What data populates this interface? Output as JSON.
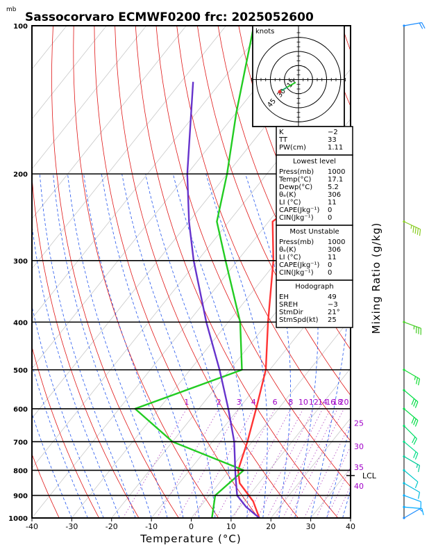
{
  "chart_data": {
    "type": "skew-t log-p sounding",
    "title": "Sassocorvaro ECMWF0200  frc: 2025052600",
    "yunit": "mb",
    "xlabel": "Temperature (°C)",
    "right_label": "Mixing Ratio (g/kg)",
    "xlim": [
      -40,
      40
    ],
    "ylim": [
      1000,
      100
    ],
    "x_ticks": [
      -40,
      -30,
      -20,
      -10,
      0,
      10,
      20,
      30,
      40
    ],
    "pressure_levels": [
      100,
      200,
      300,
      400,
      500,
      600,
      700,
      800,
      900,
      1000
    ],
    "pressure_ticks": [
      100,
      200,
      300,
      400,
      500,
      600,
      700,
      800,
      900,
      1000
    ],
    "mixing_ratio_labels": [
      "1",
      "2",
      "3",
      "4",
      "6",
      "8",
      "10",
      "12",
      "14",
      "16",
      "18",
      "20",
      "25",
      "30",
      "35",
      "40"
    ],
    "mixing_ratio_values": [
      1,
      2,
      3,
      4,
      6,
      8,
      10,
      12,
      14,
      16,
      18,
      20,
      25,
      30,
      35,
      40
    ],
    "lcl_label": "LCL",
    "lcl_pressure": 820,
    "series": [
      {
        "role": "temperature",
        "color": "#ff3333",
        "points": [
          [
            1000,
            17.1
          ],
          [
            925,
            12.2
          ],
          [
            850,
            5.2
          ],
          [
            800,
            2.2
          ],
          [
            700,
            -1.2
          ],
          [
            600,
            -5.6
          ],
          [
            500,
            -11
          ],
          [
            400,
            -20
          ],
          [
            300,
            -31
          ],
          [
            250,
            -39
          ],
          [
            200,
            -33
          ],
          [
            150,
            -22
          ],
          [
            100,
            -9
          ]
        ]
      },
      {
        "role": "dewpoint",
        "color": "#22cc22",
        "points": [
          [
            1000,
            5.2
          ],
          [
            900,
            1.5
          ],
          [
            800,
            3.6
          ],
          [
            700,
            -20
          ],
          [
            600,
            -36
          ],
          [
            500,
            -17
          ],
          [
            400,
            -27
          ],
          [
            300,
            -43
          ],
          [
            250,
            -53
          ],
          [
            200,
            -60
          ],
          [
            150,
            -70
          ],
          [
            100,
            -83
          ]
        ]
      },
      {
        "role": "parcel",
        "color": "#6633cc",
        "points": [
          [
            1000,
            17.1
          ],
          [
            950,
            11.6
          ],
          [
            900,
            7
          ],
          [
            820,
            2.6
          ],
          [
            700,
            -4.5
          ],
          [
            600,
            -12.6
          ],
          [
            500,
            -22.6
          ],
          [
            400,
            -35.5
          ],
          [
            300,
            -51
          ],
          [
            250,
            -60
          ],
          [
            200,
            -70
          ],
          [
            130,
            -87
          ]
        ]
      }
    ],
    "hodograph": {
      "unit_label": "knots",
      "ring_labels": [
        "15",
        "30",
        "45"
      ],
      "ring_values": [
        15,
        30,
        45
      ],
      "trace": [
        [
          -3,
          3
        ],
        [
          -12,
          8
        ],
        [
          -20,
          13
        ],
        [
          -19,
          11
        ]
      ],
      "storm_motion": [
        -8,
        -22
      ]
    },
    "indices": {
      "general": [
        {
          "label": "K",
          "value": "−2"
        },
        {
          "label": "TT",
          "value": "33"
        },
        {
          "label": "PW(cm)",
          "value": "1.11"
        }
      ],
      "lowest_level": {
        "header": "Lowest level",
        "rows": [
          {
            "label": "Press(mb)",
            "value": "1000"
          },
          {
            "label": "Temp(°C)",
            "value": "17.1"
          },
          {
            "label": "Dewp(°C)",
            "value": "5.2"
          },
          {
            "label": "θₑ(K)",
            "value": "306"
          },
          {
            "label": "LI (°C)",
            "value": "11"
          },
          {
            "label": "CAPE(Jkg⁻¹)",
            "value": "0"
          },
          {
            "label": "CIN(Jkg⁻¹)",
            "value": "0"
          }
        ]
      },
      "most_unstable": {
        "header": "Most Unstable",
        "rows": [
          {
            "label": "Press(mb)",
            "value": "1000"
          },
          {
            "label": "θₑ(K)",
            "value": "306"
          },
          {
            "label": "LI (°C)",
            "value": "11"
          },
          {
            "label": "CAPE(Jkg⁻¹)",
            "value": "0"
          },
          {
            "label": "CIN(Jkg⁻¹)",
            "value": "0"
          }
        ]
      },
      "hodograph_box": {
        "header": "Hodograph",
        "rows": [
          {
            "label": "EH",
            "value": "49"
          },
          {
            "label": "SREH",
            "value": "−3"
          },
          {
            "label": "StmDir",
            "value": "21°"
          },
          {
            "label": "StmSpd(kt)",
            "value": "25"
          }
        ]
      }
    },
    "wind_barbs": [
      {
        "pressure": 1000,
        "dir": 240,
        "speed": 5,
        "color": "#1a8cff"
      },
      {
        "pressure": 950,
        "dir": 275,
        "speed": 10,
        "color": "#00aaff"
      },
      {
        "pressure": 900,
        "dir": 290,
        "speed": 10,
        "color": "#00aaff"
      },
      {
        "pressure": 850,
        "dir": 300,
        "speed": 10,
        "color": "#00bbdd"
      },
      {
        "pressure": 800,
        "dir": 310,
        "speed": 10,
        "color": "#00c8c8"
      },
      {
        "pressure": 750,
        "dir": 300,
        "speed": 15,
        "color": "#00cc99"
      },
      {
        "pressure": 700,
        "dir": 310,
        "speed": 20,
        "color": "#00dd88"
      },
      {
        "pressure": 650,
        "dir": 315,
        "speed": 20,
        "color": "#00dd66"
      },
      {
        "pressure": 600,
        "dir": 310,
        "speed": 30,
        "color": "#00dd44"
      },
      {
        "pressure": 550,
        "dir": 310,
        "speed": 30,
        "color": "#00dd44"
      },
      {
        "pressure": 500,
        "dir": 300,
        "speed": 25,
        "color": "#11dd33"
      },
      {
        "pressure": 400,
        "dir": 290,
        "speed": 35,
        "color": "#44cc22"
      },
      {
        "pressure": 250,
        "dir": 295,
        "speed": 45,
        "color": "#88cc22"
      },
      {
        "pressure": 100,
        "dir": 260,
        "speed": 20,
        "color": "#1a8cff"
      }
    ]
  }
}
